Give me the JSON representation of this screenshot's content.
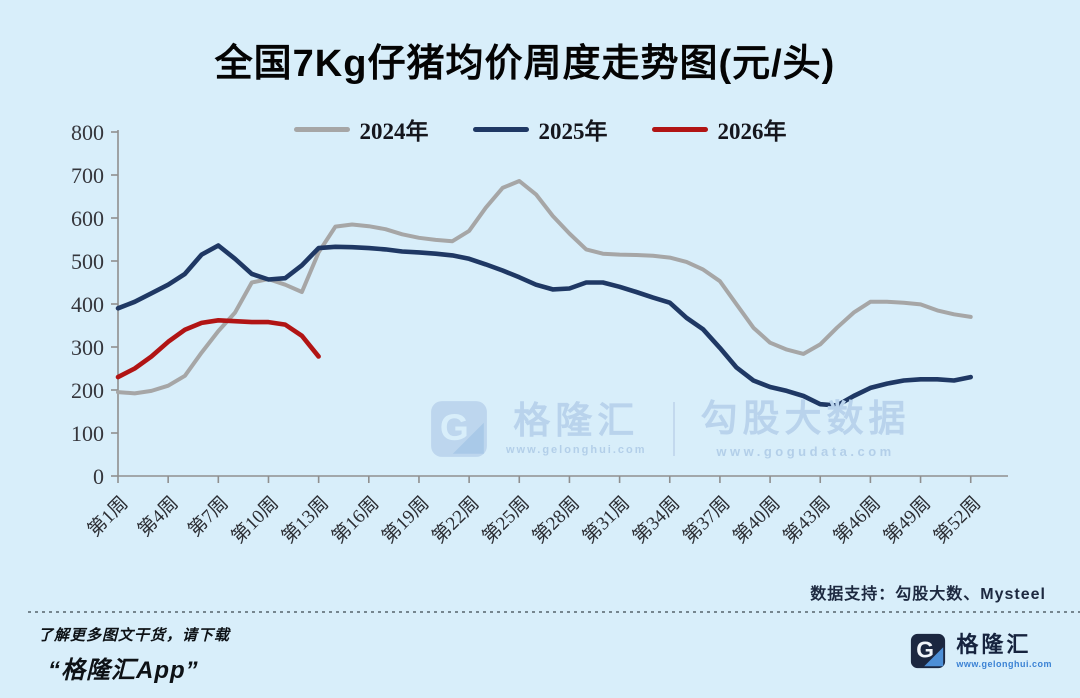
{
  "title": "全国7Kg仔猪均价周度走势图(元/头)",
  "colors": {
    "background": "#d8eefa",
    "axis": "#8f8f8f",
    "series_2024": "#a6a6a6",
    "series_2025": "#1f3864",
    "series_2026": "#b11414",
    "brand_navy": "#16233e",
    "brand_blue": "#3b82d4",
    "watermark": "#b9d3ec"
  },
  "chart_data": {
    "type": "line",
    "title": "全国7Kg仔猪均价周度走势图(元/头)",
    "x_unit": "周 (week of year)",
    "ylim": [
      0,
      800
    ],
    "y_ticks": [
      0,
      100,
      200,
      300,
      400,
      500,
      600,
      700,
      800
    ],
    "grid": false,
    "legend_position": "top",
    "x_tick_weeks": [
      1,
      4,
      7,
      10,
      13,
      16,
      19,
      22,
      25,
      28,
      31,
      34,
      37,
      40,
      43,
      46,
      49,
      52
    ],
    "x_tick_labels": [
      "第1周",
      "第4周",
      "第7周",
      "第10周",
      "第13周",
      "第16周",
      "第19周",
      "第22周",
      "第25周",
      "第28周",
      "第31周",
      "第34周",
      "第37周",
      "第40周",
      "第43周",
      "第46周",
      "第49周",
      "第52周"
    ],
    "series": [
      {
        "name": "2024年",
        "color": "#a6a6a6",
        "start_week": 1,
        "values": [
          195,
          192,
          198,
          210,
          233,
          287,
          337,
          380,
          450,
          458,
          445,
          428,
          520,
          580,
          585,
          581,
          574,
          562,
          554,
          549,
          546,
          570,
          624,
          670,
          686,
          655,
          605,
          564,
          527,
          517,
          515,
          514,
          512,
          508,
          498,
          480,
          453,
          399,
          345,
          310,
          294,
          284,
          306,
          345,
          380,
          405,
          405,
          403,
          399,
          385,
          376,
          370
        ]
      },
      {
        "name": "2025年",
        "color": "#1f3864",
        "start_week": 1,
        "values": [
          390,
          405,
          425,
          445,
          470,
          515,
          536,
          505,
          470,
          457,
          460,
          490,
          530,
          533,
          532,
          530,
          527,
          522,
          520,
          517,
          513,
          505,
          492,
          478,
          462,
          445,
          434,
          436,
          450,
          450,
          440,
          428,
          415,
          403,
          368,
          341,
          298,
          252,
          222,
          207,
          198,
          186,
          167,
          164,
          186,
          205,
          215,
          222,
          225,
          225,
          222,
          230
        ]
      },
      {
        "name": "2026年",
        "color": "#b11414",
        "start_week": 1,
        "values": [
          230,
          250,
          278,
          312,
          340,
          356,
          362,
          360,
          358,
          358,
          352,
          326,
          278
        ]
      }
    ]
  },
  "watermark_center": {
    "brand": "格隆汇",
    "brand_url": "www.gelonghui.com",
    "product": "勾股大数据",
    "product_url": "www.gogudata.com"
  },
  "footer": {
    "data_support": "数据支持：勾股大数、Mysteel",
    "promo_line1": "了解更多图文干货，请下载",
    "promo_line2": "“格隆汇App”",
    "brand": "格隆汇",
    "brand_url": "www.gelonghui.com"
  }
}
